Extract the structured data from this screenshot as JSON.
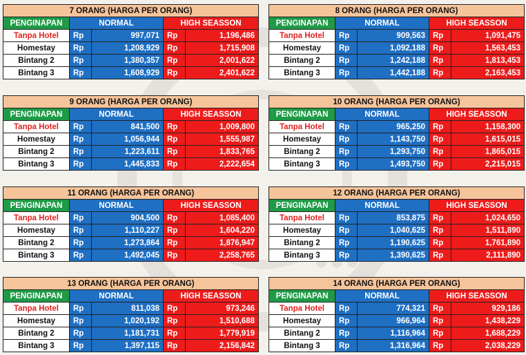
{
  "labels": {
    "accommodation": "PENGINAPAN",
    "normal": "NORMAL",
    "high": "HIGH SEASSON",
    "currency": "Rp"
  },
  "tables": [
    {
      "title": "7 ORANG (HARGA PER ORANG)",
      "rows": [
        {
          "name": "Tanpa Hotel",
          "normal": "997,071",
          "high": "1,196,486"
        },
        {
          "name": "Homestay",
          "normal": "1,208,929",
          "high": "1,715,908"
        },
        {
          "name": "Bintang 2",
          "normal": "1,380,357",
          "high": "2,001,622"
        },
        {
          "name": "Bintang 3",
          "normal": "1,608,929",
          "high": "2,401,622"
        }
      ]
    },
    {
      "title": "8 ORANG (HARGA PER ORANG)",
      "rows": [
        {
          "name": "Tanpa Hotel",
          "normal": "909,563",
          "high": "1,091,475"
        },
        {
          "name": "Homestay",
          "normal": "1,092,188",
          "high": "1,563,453"
        },
        {
          "name": "Bintang 2",
          "normal": "1,242,188",
          "high": "1,813,453"
        },
        {
          "name": "Bintang 3",
          "normal": "1,442,188",
          "high": "2,163,453"
        }
      ]
    },
    {
      "title": "9 ORANG (HARGA PER ORANG)",
      "rows": [
        {
          "name": "Tanpa Hotel",
          "normal": "841,500",
          "high": "1,009,800"
        },
        {
          "name": "Homestay",
          "normal": "1,056,944",
          "high": "1,555,987"
        },
        {
          "name": "Bintang 2",
          "normal": "1,223,611",
          "high": "1,833,765"
        },
        {
          "name": "Bintang 3",
          "normal": "1,445,833",
          "high": "2,222,654"
        }
      ]
    },
    {
      "title": "10 ORANG (HARGA PER ORANG)",
      "rows": [
        {
          "name": "Tanpa Hotel",
          "normal": "965,250",
          "high": "1,158,300"
        },
        {
          "name": "Homestay",
          "normal": "1,143,750",
          "high": "1,615,015"
        },
        {
          "name": "Bintang 2",
          "normal": "1,293,750",
          "high": "1,865,015"
        },
        {
          "name": "Bintang 3",
          "normal": "1,493,750",
          "high": "2,215,015"
        }
      ]
    },
    {
      "title": "11 ORANG (HARGA PER ORANG)",
      "rows": [
        {
          "name": "Tanpa Hotel",
          "normal": "904,500",
          "high": "1,085,400"
        },
        {
          "name": "Homestay",
          "normal": "1,110,227",
          "high": "1,604,220"
        },
        {
          "name": "Bintang 2",
          "normal": "1,273,864",
          "high": "1,876,947"
        },
        {
          "name": "Bintang 3",
          "normal": "1,492,045",
          "high": "2,258,765"
        }
      ]
    },
    {
      "title": "12 ORANG (HARGA PER ORANG)",
      "rows": [
        {
          "name": "Tanpa Hotel",
          "normal": "853,875",
          "high": "1,024,650"
        },
        {
          "name": "Homestay",
          "normal": "1,040,625",
          "high": "1,511,890"
        },
        {
          "name": "Bintang 2",
          "normal": "1,190,625",
          "high": "1,761,890"
        },
        {
          "name": "Bintang 3",
          "normal": "1,390,625",
          "high": "2,111,890"
        }
      ]
    },
    {
      "title": "13 ORANG (HARGA PER ORANG)",
      "rows": [
        {
          "name": "Tanpa Hotel",
          "normal": "811,038",
          "high": "973,246"
        },
        {
          "name": "Homestay",
          "normal": "1,020,192",
          "high": "1,510,688"
        },
        {
          "name": "Bintang 2",
          "normal": "1,181,731",
          "high": "1,779,919"
        },
        {
          "name": "Bintang 3",
          "normal": "1,397,115",
          "high": "2,156,842"
        }
      ]
    },
    {
      "title": "14 ORANG (HARGA PER ORANG)",
      "rows": [
        {
          "name": "Tanpa Hotel",
          "normal": "774,321",
          "high": "929,186"
        },
        {
          "name": "Homestay",
          "normal": "966,964",
          "high": "1,438,229"
        },
        {
          "name": "Bintang 2",
          "normal": "1,116,964",
          "high": "1,688,229"
        },
        {
          "name": "Bintang 3",
          "normal": "1,316,964",
          "high": "2,038,229"
        }
      ]
    }
  ]
}
